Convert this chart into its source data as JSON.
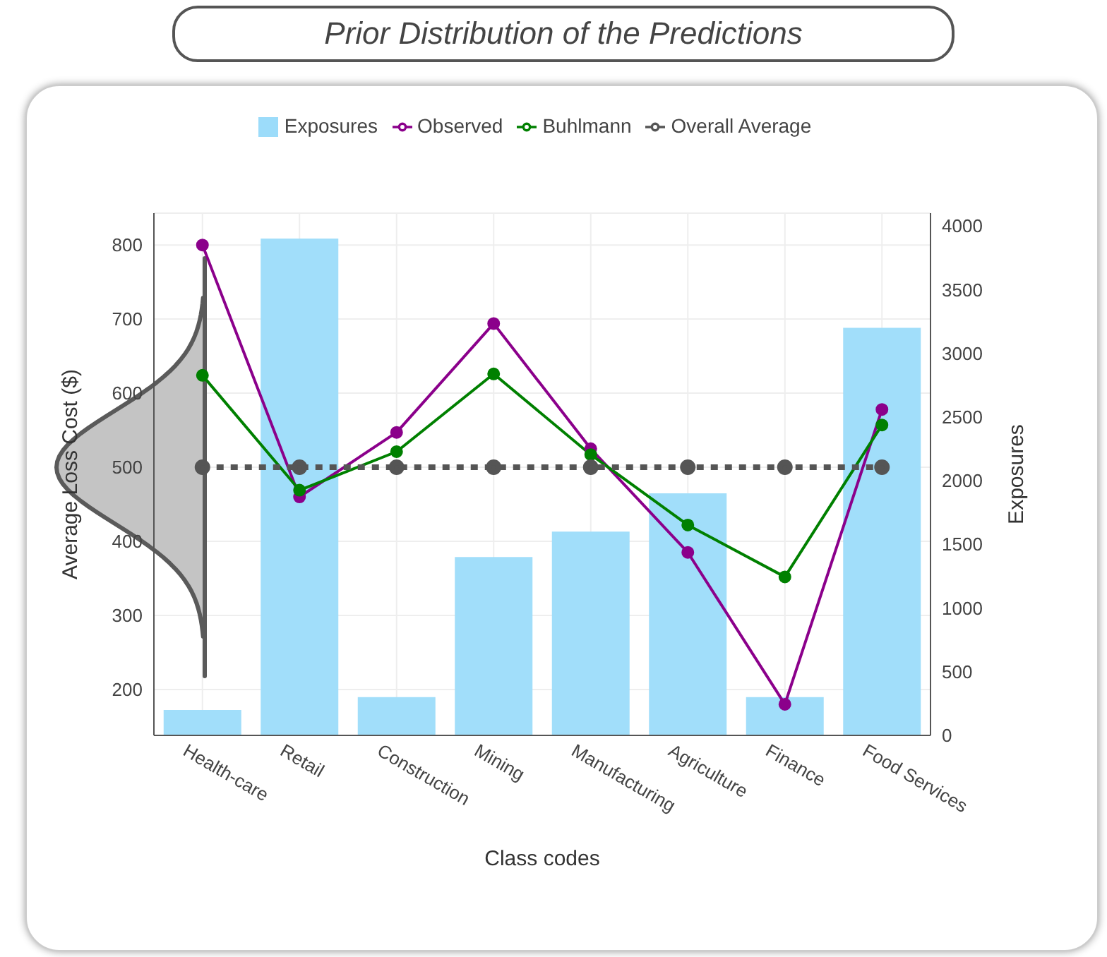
{
  "chart_data": {
    "type": "bar",
    "title": "Prior Distribution of the Predictions",
    "xlabel": "Class codes",
    "ylabel": "Average Loss Cost ($)",
    "y2label": "Exposures",
    "categories": [
      "Health-care",
      "Retail",
      "Construction",
      "Mining",
      "Manufacturing",
      "Agriculture",
      "Finance",
      "Food Services"
    ],
    "series": [
      {
        "name": "Exposures",
        "axis": "y2",
        "color": "#9cdcfa",
        "values": [
          200,
          3900,
          300,
          1400,
          1600,
          1900,
          300,
          3200
        ]
      },
      {
        "name": "Observed",
        "type": "line",
        "color": "#8b008b",
        "values": [
          800,
          460,
          547,
          694,
          525,
          385,
          180,
          578
        ]
      },
      {
        "name": "Buhlmann",
        "type": "line",
        "color": "#008000",
        "values": [
          624,
          469,
          521,
          626,
          517,
          422,
          352,
          557
        ]
      },
      {
        "name": "Overall Average",
        "type": "line",
        "color": "#555555",
        "line_style": "dotted",
        "values": [
          500,
          500,
          500,
          500,
          500,
          500,
          500,
          500
        ]
      }
    ],
    "ylim": [
      138,
      843
    ],
    "yticks": [
      200,
      300,
      400,
      500,
      600,
      700,
      800
    ],
    "y2lim": [
      0,
      4100
    ],
    "y2ticks": [
      0,
      500,
      1000,
      1500,
      2000,
      2500,
      3000,
      3500,
      4000
    ],
    "grid": true,
    "legend": "top",
    "marker": "circle"
  }
}
